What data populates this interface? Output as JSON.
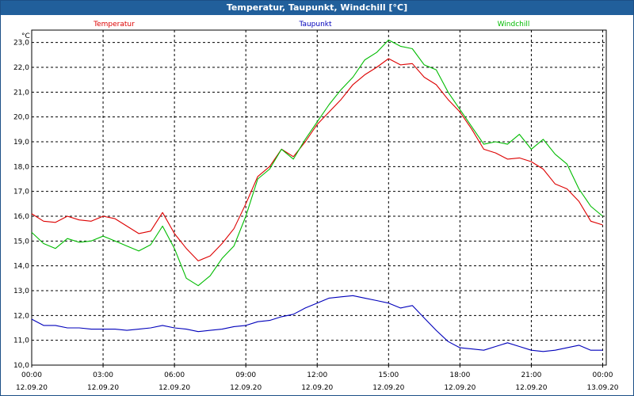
{
  "window": {
    "title": "Temperatur, Taupunkt, Windchill [°C]"
  },
  "chart_data": {
    "type": "line",
    "title": "Temperatur, Taupunkt, Windchill [°C]",
    "ylabel": "°C",
    "ylim": [
      10.0,
      23.5
    ],
    "xlim": [
      0,
      24.15
    ],
    "grid": true,
    "legend": "top",
    "yticks": [
      "10,0",
      "11,0",
      "12,0",
      "13,0",
      "14,0",
      "15,0",
      "16,0",
      "17,0",
      "18,0",
      "19,0",
      "20,0",
      "21,0",
      "22,0",
      "23,0"
    ],
    "xticks": [
      {
        "time": "00:00",
        "date": "12.09.20"
      },
      {
        "time": "03:00",
        "date": "12.09.20"
      },
      {
        "time": "06:00",
        "date": "12.09.20"
      },
      {
        "time": "09:00",
        "date": "12.09.20"
      },
      {
        "time": "12:00",
        "date": "12.09.20"
      },
      {
        "time": "15:00",
        "date": "12.09.20"
      },
      {
        "time": "18:00",
        "date": "12.09.20"
      },
      {
        "time": "21:00",
        "date": "12.09.20"
      },
      {
        "time": "00:00",
        "date": "13.09.20"
      }
    ],
    "series": [
      {
        "name": "Temperatur",
        "color": "#dd0000",
        "x": [
          0,
          0.5,
          1,
          1.5,
          2,
          2.5,
          3,
          3.5,
          4,
          4.5,
          5,
          5.5,
          6,
          6.5,
          7,
          7.5,
          8,
          8.5,
          9,
          9.5,
          10,
          10.5,
          11,
          11.5,
          12,
          12.5,
          13,
          13.5,
          14,
          14.5,
          15,
          15.5,
          16,
          16.5,
          17,
          17.5,
          18,
          18.5,
          19,
          19.5,
          20,
          20.5,
          21,
          21.5,
          22,
          22.5,
          23,
          23.5,
          24
        ],
        "y": [
          16.1,
          15.8,
          15.75,
          16.0,
          15.85,
          15.8,
          16.0,
          15.9,
          15.6,
          15.3,
          15.4,
          16.15,
          15.3,
          14.7,
          14.2,
          14.4,
          14.9,
          15.5,
          16.5,
          17.6,
          18.0,
          18.7,
          18.4,
          19.0,
          19.7,
          20.2,
          20.7,
          21.3,
          21.7,
          22.0,
          22.35,
          22.1,
          22.15,
          21.6,
          21.3,
          20.7,
          20.2,
          19.5,
          18.7,
          18.55,
          18.3,
          18.35,
          18.2,
          17.9,
          17.3,
          17.1,
          16.6,
          15.8,
          15.65
        ]
      },
      {
        "name": "Taupunkt",
        "color": "#0000bb",
        "x": [
          0,
          0.5,
          1,
          1.5,
          2,
          2.5,
          3,
          3.5,
          4,
          4.5,
          5,
          5.5,
          6,
          6.5,
          7,
          7.5,
          8,
          8.5,
          9,
          9.5,
          10,
          10.5,
          11,
          11.5,
          12,
          12.5,
          13,
          13.5,
          14,
          14.5,
          15,
          15.5,
          16,
          16.5,
          17,
          17.5,
          18,
          18.5,
          19,
          19.5,
          20,
          20.5,
          21,
          21.5,
          22,
          22.5,
          23,
          23.5,
          24
        ],
        "y": [
          11.85,
          11.6,
          11.6,
          11.5,
          11.5,
          11.45,
          11.45,
          11.45,
          11.4,
          11.45,
          11.5,
          11.6,
          11.5,
          11.45,
          11.35,
          11.4,
          11.45,
          11.55,
          11.6,
          11.75,
          11.8,
          11.95,
          12.05,
          12.3,
          12.5,
          12.7,
          12.75,
          12.8,
          12.7,
          12.6,
          12.5,
          12.3,
          12.4,
          11.9,
          11.4,
          10.95,
          10.7,
          10.65,
          10.6,
          10.75,
          10.9,
          10.75,
          10.6,
          10.55,
          10.6,
          10.7,
          10.8,
          10.6,
          10.6
        ]
      },
      {
        "name": "Windchill",
        "color": "#00bb00",
        "x": [
          0,
          0.5,
          1,
          1.5,
          2,
          2.5,
          3,
          3.5,
          4,
          4.5,
          5,
          5.5,
          6,
          6.5,
          7,
          7.5,
          8,
          8.5,
          9,
          9.5,
          10,
          10.5,
          11,
          11.5,
          12,
          12.5,
          13,
          13.5,
          14,
          14.5,
          15,
          15.5,
          16,
          16.5,
          17,
          17.5,
          18,
          18.5,
          19,
          19.5,
          20,
          20.5,
          21,
          21.5,
          22,
          22.5,
          23,
          23.5,
          24
        ],
        "y": [
          15.35,
          14.9,
          14.7,
          15.1,
          14.95,
          15.0,
          15.2,
          15.0,
          14.8,
          14.6,
          14.85,
          15.6,
          14.7,
          13.5,
          13.2,
          13.6,
          14.3,
          14.8,
          16.0,
          17.5,
          17.9,
          18.7,
          18.3,
          19.1,
          19.8,
          20.5,
          21.1,
          21.6,
          22.3,
          22.6,
          23.1,
          22.85,
          22.75,
          22.1,
          21.9,
          21.0,
          20.3,
          19.6,
          18.9,
          19.0,
          18.9,
          19.3,
          18.7,
          19.1,
          18.5,
          18.1,
          17.1,
          16.4,
          16.0
        ]
      }
    ]
  }
}
